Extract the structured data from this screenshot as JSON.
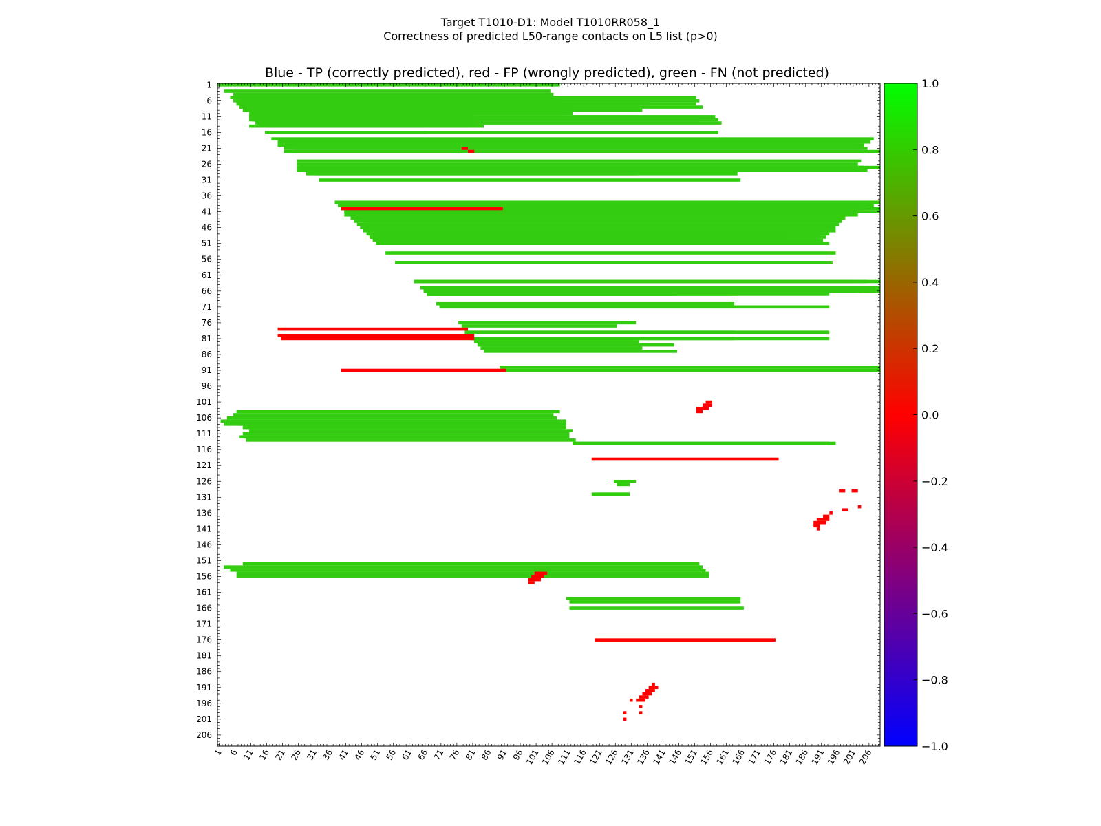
{
  "suptitle_line1": "Target T1010-D1: Model T1010RR058_1",
  "suptitle_line2": "Correctness of predicted L50-range contacts on L5 list (p>0)",
  "chart_data": {
    "type": "heatmap",
    "title": "Blue - TP (correctly predicted), red - FP (wrongly predicted), green - FN (not predicted)",
    "xlabel": "",
    "ylabel": "",
    "n_residues": 209,
    "xlim": [
      1,
      209
    ],
    "ylim": [
      1,
      209
    ],
    "tick_labels": [
      "1",
      "6",
      "11",
      "16",
      "21",
      "26",
      "31",
      "36",
      "41",
      "46",
      "51",
      "56",
      "61",
      "66",
      "71",
      "76",
      "81",
      "86",
      "91",
      "96",
      "101",
      "106",
      "111",
      "116",
      "121",
      "126",
      "131",
      "136",
      "141",
      "146",
      "151",
      "156",
      "161",
      "166",
      "171",
      "176",
      "181",
      "186",
      "191",
      "196",
      "201",
      "206"
    ],
    "colorbar": {
      "range": [
        -1.0,
        1.0
      ],
      "ticks": [
        "1.0",
        "0.8",
        "0.6",
        "0.4",
        "0.2",
        "0.0",
        "−0.2",
        "−0.4",
        "−0.6",
        "−0.8",
        "−1.0"
      ],
      "colors": [
        "#0000ff",
        "#ff0000",
        "#00ff00"
      ]
    },
    "colors": {
      "tp": "#0000ff",
      "fp": "#ff0000",
      "fn": "#33cc11"
    },
    "fn_segments": [
      [
        4,
        106,
        6
      ],
      [
        5,
        107,
        7
      ],
      [
        6,
        108,
        8
      ],
      [
        7,
        109,
        9
      ],
      [
        8,
        110,
        11
      ],
      [
        9,
        111,
        11
      ],
      [
        10,
        109,
        11
      ],
      [
        10,
        112,
        12
      ],
      [
        3,
        105,
        3
      ],
      [
        7,
        104,
        7
      ],
      [
        1,
        108,
        1
      ],
      [
        12,
        65,
        15
      ],
      [
        12,
        66,
        12
      ],
      [
        13,
        67,
        13
      ],
      [
        16,
        66,
        16
      ],
      [
        11,
        81,
        11
      ],
      [
        12,
        82,
        12
      ],
      [
        13,
        83,
        13
      ],
      [
        14,
        84,
        14
      ],
      [
        14,
        80,
        11
      ],
      [
        21,
        203,
        25
      ],
      [
        20,
        204,
        23
      ],
      [
        21,
        205,
        22
      ],
      [
        20,
        202,
        20
      ],
      [
        19,
        206,
        20
      ],
      [
        18,
        207,
        18
      ],
      [
        22,
        209,
        22
      ],
      [
        27,
        203,
        27
      ],
      [
        27,
        204,
        27
      ],
      [
        28,
        162,
        29
      ],
      [
        28,
        163,
        31
      ],
      [
        29,
        164,
        32
      ],
      [
        31,
        165,
        33
      ],
      [
        28,
        164,
        28
      ],
      [
        28,
        165,
        28
      ],
      [
        28,
        166,
        28
      ],
      [
        28,
        167,
        28
      ],
      [
        39,
        203,
        42
      ],
      [
        40,
        204,
        42
      ],
      [
        39,
        205,
        40
      ],
      [
        39,
        207,
        39
      ],
      [
        40,
        200,
        41
      ],
      [
        41,
        199,
        43
      ],
      [
        43,
        198,
        46
      ],
      [
        44,
        197,
        47
      ],
      [
        45,
        196,
        48
      ],
      [
        47,
        195,
        48
      ],
      [
        47,
        194,
        49
      ],
      [
        48,
        193,
        51
      ],
      [
        49,
        192,
        50
      ],
      [
        50,
        191,
        51
      ],
      [
        51,
        190,
        51
      ],
      [
        46,
        195,
        46
      ],
      [
        51,
        193,
        51
      ],
      [
        42,
        201,
        42
      ],
      [
        42,
        202,
        43
      ],
      [
        38,
        164,
        38
      ],
      [
        40,
        164,
        40
      ],
      [
        40,
        166,
        40
      ],
      [
        50,
        177,
        50
      ],
      [
        49,
        180,
        49
      ],
      [
        54,
        195,
        54
      ],
      [
        40,
        209,
        40
      ],
      [
        63,
        205,
        63
      ],
      [
        63,
        209,
        63
      ],
      [
        65,
        209,
        65
      ],
      [
        90,
        209,
        90
      ],
      [
        66,
        163,
        66
      ],
      [
        67,
        162,
        67
      ],
      [
        67,
        164,
        67
      ],
      [
        70,
        163,
        70
      ],
      [
        79,
        163,
        79
      ],
      [
        81,
        163,
        81
      ],
      [
        66,
        131,
        66
      ],
      [
        77,
        126,
        78
      ],
      [
        82,
        131,
        82
      ],
      [
        84,
        133,
        84
      ],
      [
        108,
        3,
        110
      ],
      [
        107,
        2,
        110
      ],
      [
        106,
        4,
        107
      ],
      [
        105,
        6,
        106
      ],
      [
        104,
        7,
        108
      ],
      [
        108,
        8,
        108
      ],
      [
        109,
        9,
        109
      ],
      [
        109,
        10,
        110
      ],
      [
        110,
        11,
        112
      ],
      [
        111,
        9,
        111
      ],
      [
        112,
        8,
        111
      ],
      [
        113,
        10,
        113
      ],
      [
        8,
        133,
        8
      ],
      [
        9,
        132,
        9
      ],
      [
        9,
        134,
        9
      ],
      [
        7,
        136,
        7
      ],
      [
        7,
        151,
        7
      ],
      [
        8,
        153,
        8
      ],
      [
        126,
        132,
        126
      ],
      [
        127,
        130,
        127
      ],
      [
        130,
        119,
        130
      ],
      [
        130,
        121,
        130
      ],
      [
        153,
        3,
        153
      ],
      [
        154,
        5,
        154
      ],
      [
        155,
        7,
        155
      ],
      [
        156,
        7,
        155
      ],
      [
        152,
        9,
        152
      ],
      [
        5,
        151,
        5
      ],
      [
        6,
        152,
        6
      ],
      [
        12,
        152,
        12
      ],
      [
        11,
        157,
        11
      ],
      [
        12,
        158,
        11
      ],
      [
        13,
        159,
        13
      ],
      [
        16,
        158,
        16
      ],
      [
        25,
        203,
        26
      ],
      [
        26,
        202,
        26
      ],
      [
        27,
        204,
        26
      ],
      [
        28,
        205,
        26
      ],
      [
        38,
        209,
        38
      ],
      [
        39,
        203,
        39
      ],
      [
        40,
        202,
        40
      ],
      [
        41,
        200,
        41
      ],
      [
        42,
        198,
        41
      ],
      [
        43,
        198,
        43
      ],
      [
        44,
        196,
        44
      ],
      [
        45,
        194,
        45
      ],
      [
        46,
        193,
        46
      ],
      [
        47,
        192,
        47
      ],
      [
        48,
        191,
        48
      ],
      [
        49,
        190,
        49
      ],
      [
        50,
        189,
        50
      ],
      [
        51,
        188,
        51
      ],
      [
        49,
        177,
        49
      ],
      [
        50,
        179,
        50
      ],
      [
        57,
        194,
        57
      ],
      [
        63,
        201,
        63
      ],
      [
        66,
        201,
        67
      ],
      [
        66,
        203,
        66
      ],
      [
        67,
        193,
        68
      ],
      [
        71,
        193,
        71
      ],
      [
        79,
        193,
        80
      ],
      [
        81,
        193,
        81
      ],
      [
        114,
        193,
        113
      ],
      [
        114,
        195,
        113
      ],
      [
        76,
        132,
        77
      ],
      [
        82,
        133,
        82
      ],
      [
        84,
        134,
        84
      ],
      [
        67,
        144,
        67
      ],
      [
        83,
        144,
        83
      ],
      [
        85,
        145,
        85
      ],
      [
        91,
        209,
        91
      ],
      [
        66,
        209,
        66
      ],
      [
        27,
        209,
        27
      ],
      [
        41,
        209,
        41
      ],
      [
        8,
        112,
        8
      ],
      [
        109,
        9,
        109
      ],
      [
        29,
        132,
        29
      ],
      [
        164,
        112,
        165
      ],
      [
        166,
        112,
        166
      ],
      [
        163,
        111,
        165
      ]
    ],
    "fp_segments": [
      [
        21,
        78,
        79
      ],
      [
        22,
        80,
        81
      ],
      [
        78,
        20,
        79
      ],
      [
        80,
        20,
        81
      ],
      [
        81,
        21,
        81
      ],
      [
        40,
        90,
        40
      ],
      [
        91,
        40,
        91
      ],
      [
        101,
        155,
        156
      ],
      [
        102,
        154,
        156
      ],
      [
        103,
        152,
        155
      ],
      [
        104,
        152,
        153
      ],
      [
        155,
        101,
        104
      ],
      [
        156,
        100,
        103
      ],
      [
        157,
        99,
        102
      ],
      [
        158,
        99,
        100
      ],
      [
        119,
        177,
        119
      ],
      [
        176,
        120,
        176
      ],
      [
        191,
        137,
        138
      ],
      [
        192,
        136,
        138
      ],
      [
        193,
        135,
        137
      ],
      [
        194,
        134,
        136
      ],
      [
        195,
        133,
        135
      ],
      [
        190,
        138,
        138
      ],
      [
        191,
        139,
        139
      ],
      [
        195,
        131,
        131
      ],
      [
        197,
        134,
        134
      ],
      [
        199,
        134,
        134
      ],
      [
        199,
        129,
        129
      ],
      [
        201,
        129,
        129
      ],
      [
        136,
        194,
        194
      ],
      [
        137,
        192,
        193
      ],
      [
        138,
        190,
        193
      ],
      [
        139,
        189,
        192
      ],
      [
        140,
        189,
        190
      ],
      [
        141,
        190,
        190
      ],
      [
        129,
        197,
        198
      ],
      [
        129,
        201,
        202
      ],
      [
        135,
        198,
        199
      ],
      [
        134,
        203,
        203
      ]
    ]
  }
}
